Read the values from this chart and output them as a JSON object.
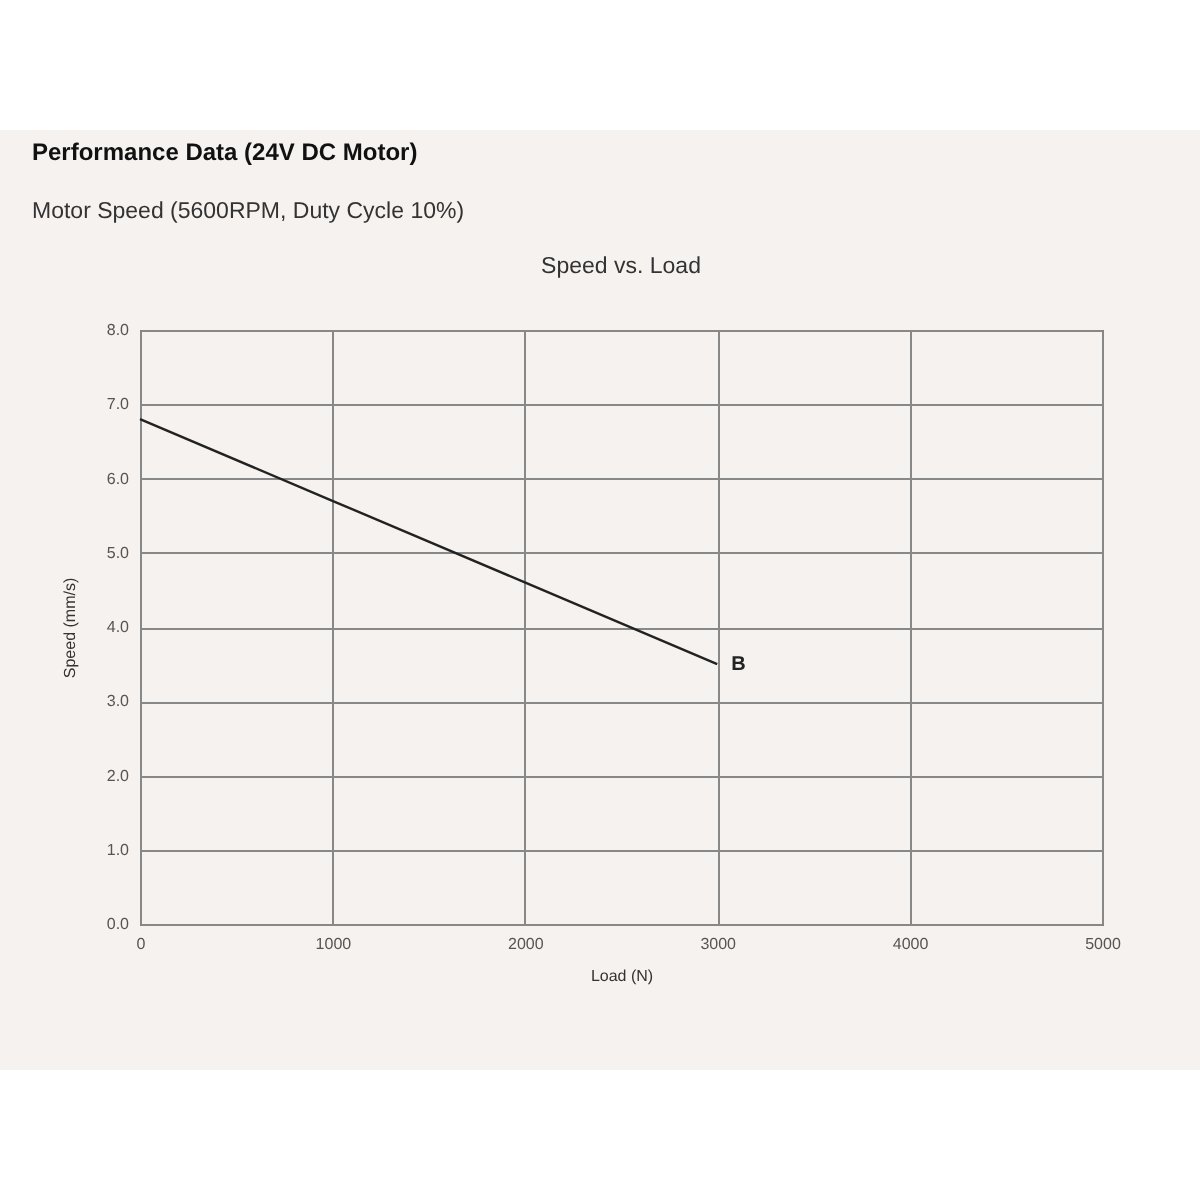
{
  "chart_data": {
    "type": "line",
    "title": "Performance Data (24V DC Motor)",
    "subtitle": "Motor Speed (5600RPM, Duty Cycle 10%)",
    "annotations": [
      "Speed vs. Load"
    ],
    "xlabel": "Load (N)",
    "ylabel": "Speed (mm/s)",
    "x": [
      0,
      1000,
      2000,
      3000
    ],
    "series": [
      {
        "name": "B",
        "color": "#222222",
        "values": [
          6.8,
          5.7,
          4.6,
          3.5
        ]
      }
    ],
    "xlim": [
      0,
      5000
    ],
    "xticks": [
      0,
      1000,
      2000,
      3000,
      4000,
      5000
    ],
    "ylim": [
      0,
      8
    ],
    "yticks": [
      {
        "value": 0,
        "label": "0.0"
      },
      {
        "value": 1,
        "label": "1.0"
      },
      {
        "value": 2,
        "label": "2.0"
      },
      {
        "value": 3,
        "label": "3.0"
      },
      {
        "value": 4,
        "label": "4.0"
      },
      {
        "value": 5,
        "label": "5.0"
      },
      {
        "value": 6,
        "label": "6.0"
      },
      {
        "value": 7,
        "label": "7.0"
      },
      {
        "value": 8,
        "label": "8.0"
      }
    ],
    "grid": true,
    "legend": false,
    "marker": "none",
    "line_style": "solid"
  }
}
